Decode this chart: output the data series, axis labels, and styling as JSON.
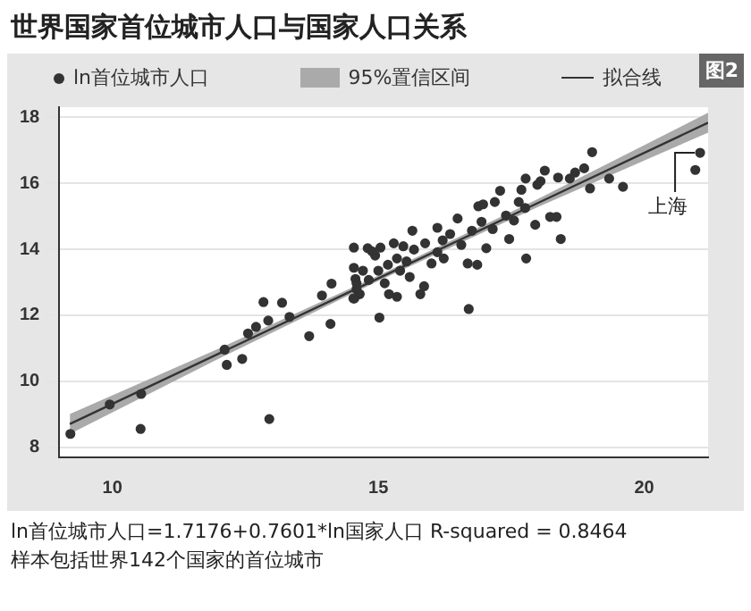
{
  "chart_data": {
    "type": "scatter",
    "title": "世界国家首位城市人口与国家人口关系",
    "annotations": [
      "图2",
      "95%置信区间",
      {
        "text": "上海",
        "x": 21.05,
        "y": 16.92
      },
      "ln首位城市人口=1.7176+0.7601*ln国家人口 R-squared = 0.8464",
      "样本包括世界142个国家的首位城市"
    ],
    "xlim": [
      9,
      21.2
    ],
    "ylim": [
      7.7,
      18.3
    ],
    "xticks": [
      10,
      15,
      20
    ],
    "yticks": [
      8,
      10,
      12,
      14,
      16,
      18
    ],
    "grid": "y",
    "legend": "top",
    "series": [
      {
        "name": "ln首位城市人口",
        "marker": "circle",
        "color": "#333333",
        "x": [
          9.21,
          9.95,
          10.54,
          10.53,
          12.11,
          12.15,
          12.44,
          12.55,
          12.7,
          12.84,
          12.93,
          12.95,
          13.19,
          13.33,
          13.7,
          13.94,
          14.1,
          14.12,
          14.54,
          14.54,
          14.57,
          14.55,
          14.59,
          14.65,
          14.8,
          21.05,
          20.96,
          19.02,
          19.6,
          19.34,
          18.98,
          18.87,
          18.7,
          18.6,
          18.38,
          18.13,
          18.05,
          17.77,
          17.69,
          17.29,
          17.19,
          18.35,
          18.23,
          18.43,
          17.95,
          17.78,
          17.46,
          17.55,
          17.76,
          16.88,
          16.97,
          17.15,
          17.03,
          16.86,
          16.68,
          16.7,
          16.49,
          16.56,
          16.35,
          16.21,
          16.11,
          16,
          15.86,
          15.79,
          15.64,
          15.67,
          15.53,
          15.41,
          15.29,
          15.35,
          15.18,
          15.04,
          14.94,
          15,
          15.2,
          15.35,
          15.02,
          14.82,
          14.71,
          14.59,
          14.53,
          14.88,
          16.11,
          16.76,
          17.4,
          15.88,
          15.47,
          15.12,
          15.59,
          16.23,
          16.94,
          17.64,
          17.99
        ],
        "values": [
          8.41,
          9.3,
          9.62,
          8.56,
          10.96,
          10.5,
          10.68,
          11.45,
          11.65,
          12.4,
          11.84,
          8.86,
          12.38,
          11.95,
          11.37,
          12.6,
          11.74,
          12.96,
          14.05,
          13.44,
          13.1,
          12.51,
          12.79,
          12.64,
          14.03,
          16.92,
          16.4,
          16.94,
          15.89,
          16.14,
          15.84,
          16.45,
          16.32,
          16.14,
          16.17,
          16.38,
          16.06,
          16.14,
          15.8,
          15.77,
          15.43,
          14.98,
          14.98,
          14.31,
          14.74,
          13.72,
          14.31,
          14.87,
          15.25,
          15.3,
          15.36,
          14.61,
          14.03,
          13.53,
          13.57,
          12.19,
          14.93,
          14.13,
          14.46,
          14.27,
          13.91,
          13.57,
          12.88,
          12.64,
          14.56,
          13.99,
          13.63,
          13.35,
          14.18,
          13.72,
          13.53,
          14.05,
          13.81,
          13.35,
          12.64,
          12.56,
          11.93,
          13.07,
          13.35,
          12.97,
          12.51,
          13.94,
          14.65,
          14.56,
          15.02,
          14.18,
          14.09,
          12.97,
          13.16,
          13.72,
          14.83,
          15.43,
          15.95
        ]
      },
      {
        "name": "拟合线",
        "type": "line",
        "marker": "none",
        "color": "#333333",
        "x": [
          9.2,
          12,
          15,
          18,
          21.2
        ],
        "values": [
          8.71,
          10.84,
          13.12,
          15.4,
          17.83
        ],
        "lower": [
          8.41,
          10.69,
          13.04,
          15.28,
          17.53
        ],
        "upper": [
          9.01,
          10.99,
          13.2,
          15.52,
          18.13
        ]
      }
    ]
  }
}
